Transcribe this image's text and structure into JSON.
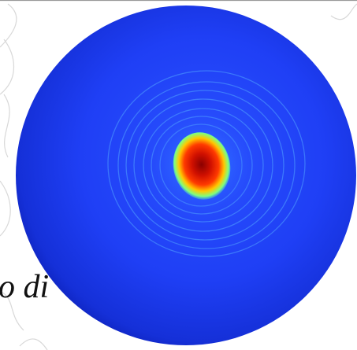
{
  "caption_fragment": "o di"
}
